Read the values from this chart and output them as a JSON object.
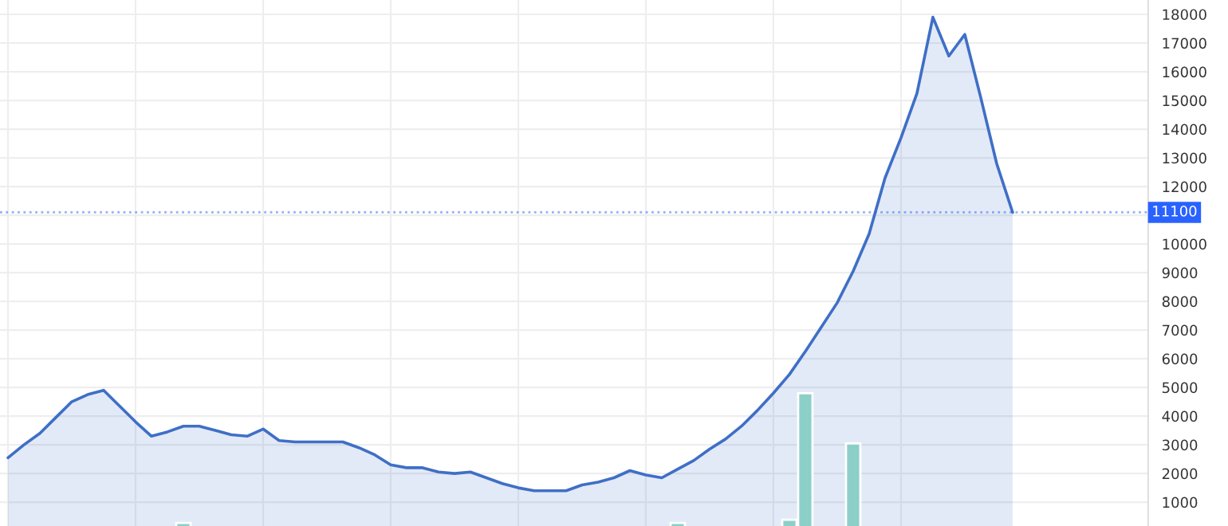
{
  "chart_data": {
    "type": "area",
    "categories": [
      null,
      null,
      null,
      null,
      null,
      null,
      null,
      null,
      null,
      null,
      null,
      null,
      null,
      null,
      null,
      null,
      null,
      null,
      null,
      null,
      null,
      null,
      null,
      null,
      null,
      null,
      null,
      null,
      null,
      null,
      null,
      null,
      null,
      null,
      null,
      null,
      null,
      null,
      null,
      null,
      null,
      null,
      null,
      null,
      null,
      null,
      null,
      null,
      null,
      null,
      null,
      null,
      null,
      null,
      null,
      null,
      null,
      null,
      null,
      null,
      null,
      null,
      null,
      null
    ],
    "series": [
      {
        "type": "bar",
        "color": "#8ccfc8",
        "values": [
          null,
          null,
          null,
          null,
          null,
          null,
          null,
          null,
          null,
          null,
          null,
          280,
          null,
          null,
          null,
          null,
          null,
          null,
          null,
          null,
          null,
          null,
          null,
          null,
          null,
          null,
          null,
          null,
          null,
          null,
          null,
          null,
          null,
          null,
          null,
          null,
          null,
          null,
          null,
          null,
          null,
          null,
          280,
          null,
          null,
          null,
          null,
          null,
          null,
          390,
          4800,
          null,
          null,
          3050,
          null,
          null,
          null,
          null,
          null,
          null,
          null,
          null,
          null,
          null
        ]
      },
      {
        "color": "#3f6fc6",
        "values": [
          2550,
          3000,
          3400,
          3950,
          4500,
          4750,
          4900,
          4350,
          3800,
          3300,
          3450,
          3650,
          3650,
          3500,
          3350,
          3300,
          3550,
          3150,
          3100,
          3100,
          3100,
          3100,
          2900,
          2650,
          2300,
          2200,
          2200,
          2050,
          2000,
          2050,
          1850,
          1650,
          1500,
          1400,
          1400,
          1400,
          1600,
          1700,
          1850,
          2100,
          1950,
          1850,
          2150,
          2450,
          2850,
          3200,
          3650,
          4200,
          4800,
          5450,
          6250,
          7100,
          7950,
          9050,
          10350,
          12300,
          13700,
          15250,
          17900,
          16550,
          17300,
          15100,
          12800,
          11100
        ]
      }
    ],
    "ylim": [
      170,
      18500
    ],
    "yticks": [
      1000,
      2000,
      3000,
      4000,
      5000,
      6000,
      7000,
      8000,
      9000,
      10000,
      {
        "value": 11000,
        "label": null
      },
      12000,
      13000,
      14000,
      15000,
      16000,
      17000,
      18000
    ],
    "ref_lines": [
      {
        "axis": "y",
        "value": 11100,
        "label": "11100",
        "color": "#2962ff",
        "line_style": "dotted"
      }
    ],
    "grid": true,
    "tick_labels": "y"
  }
}
